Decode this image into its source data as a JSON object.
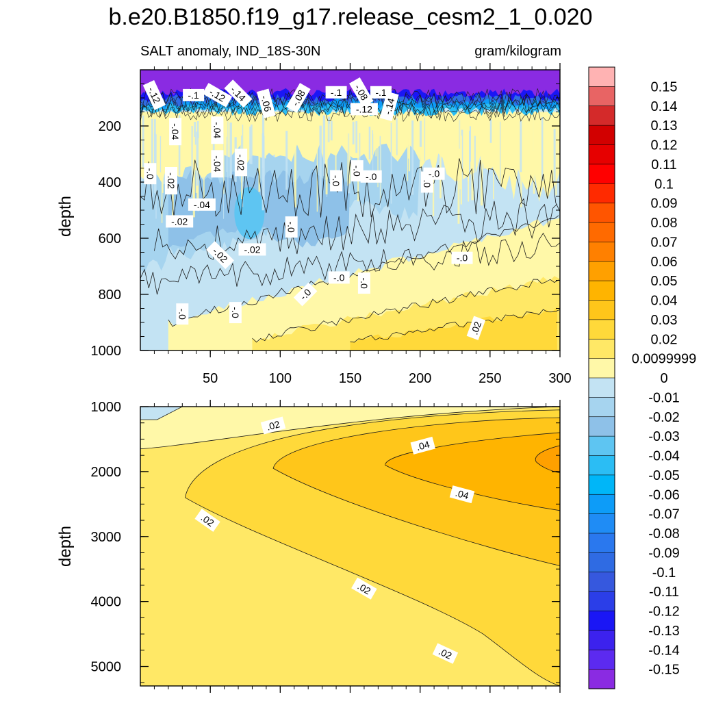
{
  "chart_data": {
    "type": "heatmap",
    "title": "b.e20.B1850.f19_g17.release_cesm2_1_0.020",
    "subtitle_left": "SALT anomaly, IND_18S-30N",
    "subtitle_right": "gram/kilogram",
    "panels": [
      {
        "name": "upper",
        "ylabel": "depth",
        "ylim": [
          0,
          1000
        ],
        "yticks": [
          "200",
          "400",
          "600",
          "800",
          "1000"
        ],
        "xlim": [
          0,
          300
        ],
        "xticks": [
          "50",
          "100",
          "150",
          "200",
          "250",
          "300"
        ],
        "contour_labels": [
          "-.12",
          "-.1",
          "-.12",
          "-.14",
          "-.06",
          "-.08",
          "-.1",
          "-.08",
          "-.1",
          "-.12",
          "-.14",
          "-.04",
          "-.04",
          "-.0",
          "-.04",
          "-.02",
          "-.02",
          "-.0",
          "-.0",
          "-.0",
          "-.0",
          "-.04",
          "-.02",
          "-.02",
          "-.0",
          "-.0",
          "-.02",
          "-.0",
          "-.0",
          "-.0",
          "-.0",
          "-.0",
          "-.0",
          ".02"
        ]
      },
      {
        "name": "lower",
        "ylabel": "depth",
        "ylim": [
          1000,
          5300
        ],
        "yticks": [
          "1000",
          "2000",
          "3000",
          "4000",
          "5000"
        ],
        "xlim": [
          0,
          300
        ],
        "contour_labels": [
          ".02",
          ".04",
          ".04",
          ".02",
          ".02",
          ".02"
        ]
      }
    ],
    "colorbar": {
      "levels": [
        "0.15",
        "0.14",
        "0.13",
        "0.12",
        "0.11",
        "0.1",
        "0.09",
        "0.08",
        "0.07",
        "0.06",
        "0.05",
        "0.04",
        "0.03",
        "0.02",
        "0.0099999",
        "0",
        "-0.01",
        "-0.02",
        "-0.03",
        "-0.04",
        "-0.05",
        "-0.06",
        "-0.07",
        "-0.08",
        "-0.09",
        "-0.1",
        "-0.11",
        "-0.12",
        "-0.13",
        "-0.14",
        "-0.15"
      ],
      "colors": [
        "#ffb3b3",
        "#e86464",
        "#d42a2a",
        "#d20000",
        "#e60000",
        "#ff0000",
        "#ff2a00",
        "#ff5500",
        "#ff6a00",
        "#ff8000",
        "#ffa000",
        "#ffb400",
        "#ffc61a",
        "#ffd93a",
        "#ffe866",
        "#fff8a8",
        "#c3e3f3",
        "#a6d4ef",
        "#8ec1e8",
        "#5ec5f2",
        "#2bbdf4",
        "#00b6f8",
        "#0d9cf8",
        "#1f8cf5",
        "#2a78ee",
        "#2f6be3",
        "#3658de",
        "#2b3ee8",
        "#1a16f5",
        "#3c22ee",
        "#5c2af0",
        "#8a2be2"
      ]
    }
  }
}
